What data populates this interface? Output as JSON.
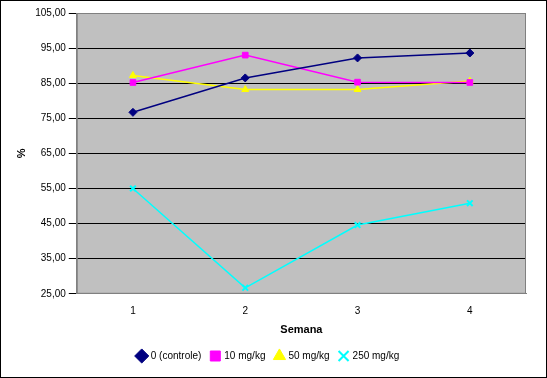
{
  "chart_data": {
    "type": "line",
    "x_label": "Semana",
    "y_label": "%",
    "categories": [
      "1",
      "2",
      "3",
      "4"
    ],
    "series": [
      {
        "name": "0 (controle)",
        "color": "#000080",
        "marker": "diamond",
        "values": [
          76.7,
          86.5,
          92.2,
          93.6
        ]
      },
      {
        "name": "10 mg/kg",
        "color": "#ff00ff",
        "marker": "square",
        "values": [
          85.2,
          93.0,
          85.3,
          85.2
        ]
      },
      {
        "name": "50 mg/kg",
        "color": "#ffff00",
        "marker": "triangle",
        "values": [
          87.2,
          83.2,
          83.2,
          85.6
        ]
      },
      {
        "name": "250 mg/kg",
        "color": "#00ffff",
        "marker": "x",
        "values": [
          55.0,
          26.7,
          44.6,
          50.8
        ]
      }
    ],
    "ylim": [
      25,
      105
    ],
    "yticks": [
      {
        "value": 25,
        "label": "25,00"
      },
      {
        "value": 35,
        "label": "35,00"
      },
      {
        "value": 45,
        "label": "45,00"
      },
      {
        "value": 55,
        "label": "55,00"
      },
      {
        "value": 65,
        "label": "65,00"
      },
      {
        "value": 75,
        "label": "75,00"
      },
      {
        "value": 85,
        "label": "85,00"
      },
      {
        "value": 95,
        "label": "95,00"
      },
      {
        "value": 105,
        "label": "105,00"
      }
    ],
    "grid": true,
    "legend": "bottom"
  }
}
